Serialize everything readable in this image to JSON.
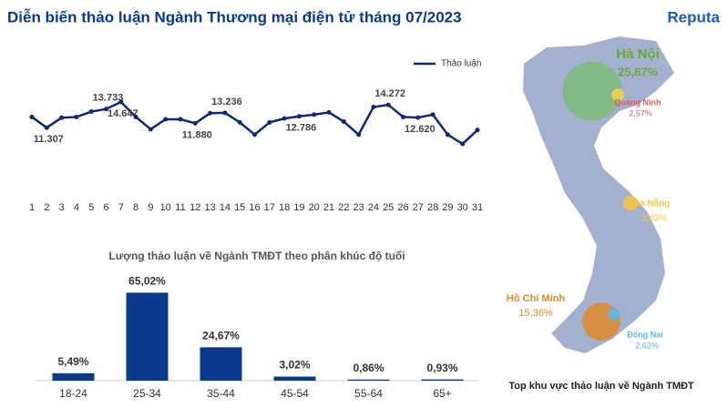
{
  "brand": "Reputa",
  "title": "Diễn biến thảo luận Ngành Thương mại điện tử tháng 07/2023",
  "chart_data": [
    {
      "type": "line",
      "x": [
        1,
        2,
        3,
        4,
        5,
        6,
        7,
        8,
        9,
        10,
        11,
        12,
        13,
        14,
        15,
        16,
        17,
        18,
        19,
        20,
        21,
        22,
        23,
        24,
        25,
        26,
        27,
        28,
        29,
        30,
        31
      ],
      "series": [
        {
          "name": "Thảo luận",
          "color": "#0d2a7a",
          "values": [
            12700,
            11307,
            12600,
            12700,
            13400,
            13733,
            14647,
            12700,
            11100,
            12400,
            12400,
            11880,
            13200,
            13236,
            12000,
            10400,
            12000,
            12500,
            12786,
            13000,
            13300,
            12100,
            10400,
            14000,
            14272,
            12700,
            12620,
            13000,
            10400,
            9200,
            11000
          ],
          "value_labels": [
            null,
            "11.307",
            null,
            null,
            null,
            "13.733",
            "14.647",
            null,
            null,
            null,
            null,
            "11.880",
            null,
            "13.236",
            null,
            null,
            null,
            null,
            "12.786",
            null,
            null,
            null,
            null,
            null,
            "14.272",
            null,
            "12.620",
            null,
            null,
            null,
            null
          ]
        }
      ]
    },
    {
      "type": "bar",
      "title": "Lượng thảo luận về Ngành TMĐT theo phân khúc độ tuổi",
      "categories": [
        "18-24",
        "25-34",
        "35-44",
        "45-54",
        "55-64",
        "65+"
      ],
      "values": [
        5.49,
        65.02,
        24.67,
        3.02,
        0.86,
        0.93
      ],
      "value_labels": [
        "5,49%",
        "65,02%",
        "24,67%",
        "3,02%",
        "0,86%",
        "0,93%"
      ],
      "color": "#0b3a8c",
      "ylim": [
        0,
        70
      ]
    },
    {
      "type": "map",
      "title": "Top khu vực thảo luận về Ngành TMĐT",
      "categories": [
        "Hà Nội",
        "Quảng Ninh",
        "Đà Nẵng",
        "Hồ Chí Minh",
        "Đồng Nai"
      ],
      "values": [
        25.87,
        2.57,
        3.83,
        15.36,
        2.63
      ],
      "value_labels": [
        "25,87%",
        "2,57%",
        "3,83%",
        "15,36%",
        "2,63%"
      ],
      "colors": [
        "#7dbb7a",
        "#f5d44a",
        "#f5c842",
        "#e08a2a",
        "#5bb8e8"
      ]
    }
  ]
}
